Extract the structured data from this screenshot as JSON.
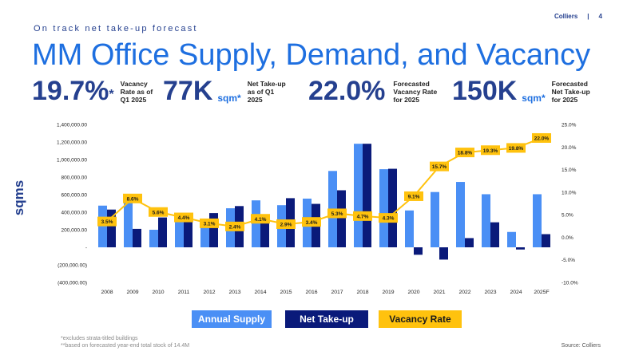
{
  "header": {
    "brand": "Colliers",
    "page_number": "4",
    "separator": "|"
  },
  "subtitle": "On track net take-up forecast",
  "title": "MM Office Supply, Demand, and Vacancy",
  "kpis": [
    {
      "value": "19.7%",
      "unit": "",
      "star": "*",
      "desc1": "Vacancy",
      "desc2": "Rate as of",
      "desc3": "Q1 2025"
    },
    {
      "value": "77K",
      "unit": "sqm*",
      "star": "",
      "desc1": "Net Take-up",
      "desc2": "as of Q1",
      "desc3": "2025"
    },
    {
      "value": "22.0%",
      "unit": "",
      "star": "",
      "desc1": "Forecasted",
      "desc2": "Vacancy Rate",
      "desc3": "for 2025"
    },
    {
      "value": "150K",
      "unit": "sqm*",
      "star": "",
      "desc1": "Forecasted",
      "desc2": "Net Take-up",
      "desc3": "for 2025"
    }
  ],
  "footnotes": {
    "line1": "*excludes strata-titled buildings",
    "line2": "**based on forecasted year-end total stock of 14.4M"
  },
  "source": "Source: Colliers",
  "colors": {
    "annual_supply": "#4a8ff5",
    "net_takeup": "#0a1a7a",
    "vacancy": "#ffc20e",
    "title_blue": "#1e6fe0",
    "navy": "#25408f"
  },
  "chart_data": {
    "type": "bar",
    "categories": [
      "2008",
      "2009",
      "2010",
      "2011",
      "2012",
      "2013",
      "2014",
      "2015",
      "2016",
      "2017",
      "2018",
      "2019",
      "2020",
      "2021",
      "2022",
      "2023",
      "2024",
      "2025F"
    ],
    "series": [
      {
        "name": "Annual Supply",
        "values": [
          475000,
          590000,
          200000,
          295000,
          325000,
          445000,
          535000,
          480000,
          555000,
          870000,
          1180000,
          890000,
          420000,
          630000,
          745000,
          605000,
          175000,
          605000
        ]
      },
      {
        "name": "Net Take-up",
        "values": [
          430000,
          210000,
          340000,
          295000,
          390000,
          470000,
          285000,
          560000,
          495000,
          650000,
          1180000,
          895000,
          -85000,
          -140000,
          105000,
          285000,
          -25000,
          150000
        ]
      },
      {
        "name": "Vacancy Rate",
        "axis": "right",
        "values": [
          3.5,
          8.6,
          5.6,
          4.4,
          3.1,
          2.4,
          4.1,
          2.9,
          3.4,
          5.3,
          4.7,
          4.3,
          9.1,
          15.7,
          18.8,
          19.3,
          19.8,
          22.0
        ]
      }
    ],
    "vacancy_labels": [
      "3.5%",
      "8.6%",
      "5.6%",
      "4.4%",
      "3.1%",
      "2.4%",
      "4.1%",
      "2.9%",
      "3.4%",
      "5.3%",
      "4.7%",
      "4.3%",
      "9.1%",
      "15.7%",
      "18.8%",
      "19.3%",
      "19.8%",
      "22.0%"
    ],
    "ylabel": "sqms",
    "ylim": [
      -400000,
      1400000
    ],
    "y_ticks": [
      1400000,
      1200000,
      1000000,
      800000,
      600000,
      400000,
      200000,
      0,
      -200000,
      -400000
    ],
    "y_tick_labels": [
      "1,400,000.00",
      "1,200,000.00",
      "1,000,000.00",
      "800,000.00",
      "600,000.00",
      "400,000.00",
      "200,000.00",
      "-",
      "(200,000.00)",
      "(400,000.00)"
    ],
    "y2lim": [
      -10,
      25
    ],
    "y2_ticks": [
      25,
      20,
      15,
      10,
      5,
      0,
      -5,
      -10
    ],
    "y2_tick_labels": [
      "25.0%",
      "20.0%",
      "15.0%",
      "10.0%",
      "5.0%",
      "0.0%",
      "-5.0%",
      "-10.0%"
    ],
    "legend": [
      "Annual Supply",
      "Net Take-up",
      "Vacancy Rate"
    ],
    "legend_position": "bottom",
    "grid": false
  }
}
